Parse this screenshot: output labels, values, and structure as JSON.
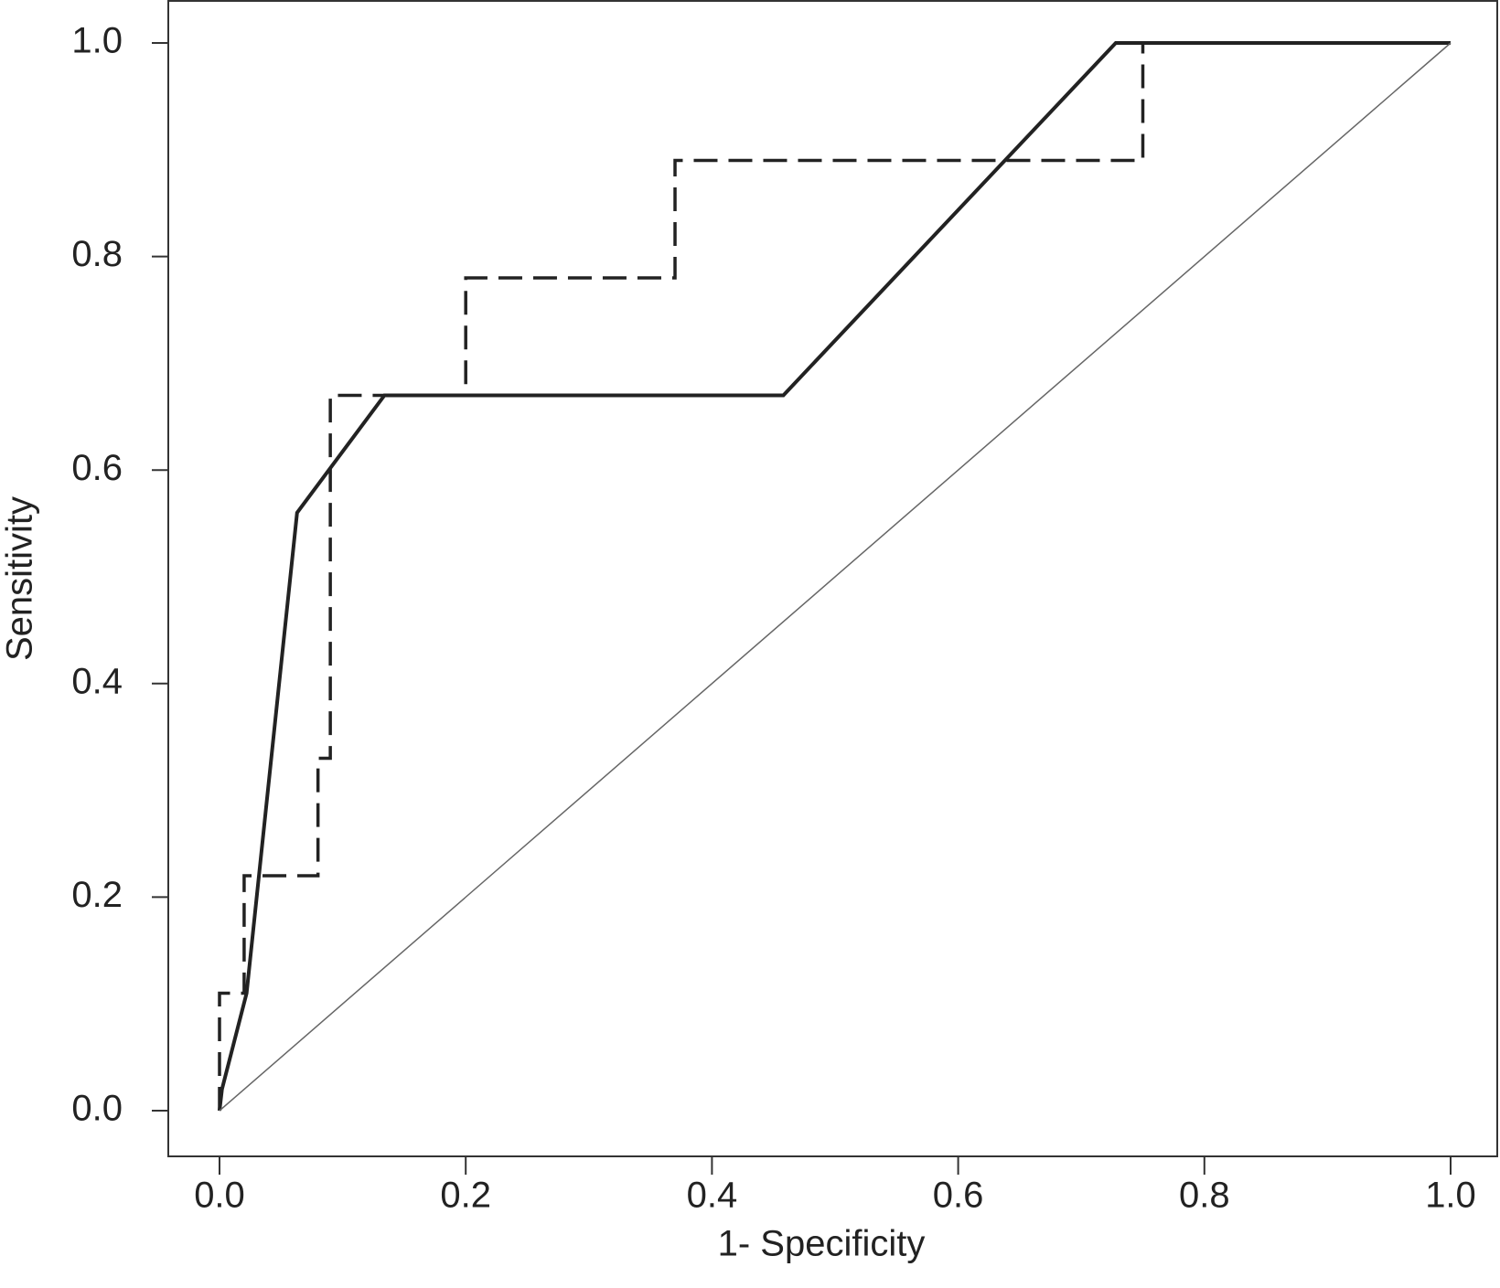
{
  "chart_data": {
    "type": "line",
    "xlabel": "1- Specificity",
    "ylabel": "Sensitivity",
    "xlim": [
      0,
      1
    ],
    "ylim": [
      0,
      1
    ],
    "xticks": [
      {
        "value": 0,
        "label": "0.0"
      },
      0.2,
      0.4,
      0.6,
      0.8,
      {
        "value": 1,
        "label": "1.0"
      }
    ],
    "yticks": [
      {
        "value": 0,
        "label": "0.0"
      },
      0.2,
      0.4,
      0.6,
      0.8,
      {
        "value": 1,
        "label": "1.0"
      }
    ],
    "grid": false,
    "series": [
      {
        "color": "#222222",
        "line_width": 4,
        "dash": false,
        "x": [
          0,
          0.002,
          0.022,
          0.063,
          0.134,
          0.458,
          0.728,
          1
        ],
        "values": [
          0,
          0.02,
          0.11,
          0.56,
          0.67,
          0.67,
          1,
          1
        ]
      },
      {
        "color": "#222222",
        "line_width": 3.5,
        "dash": true,
        "x": [
          0,
          0,
          0.02,
          0.02,
          0.08,
          0.08,
          0.09,
          0.09,
          0.2,
          0.2,
          0.37,
          0.37,
          0.75,
          0.75,
          1
        ],
        "values": [
          0,
          0.11,
          0.11,
          0.22,
          0.22,
          0.33,
          0.33,
          0.67,
          0.67,
          0.78,
          0.78,
          0.89,
          0.89,
          1,
          1
        ]
      },
      {
        "color": "#666666",
        "line_width": 1.5,
        "dash": false,
        "x": [
          0,
          1
        ],
        "values": [
          0,
          1
        ]
      }
    ]
  }
}
